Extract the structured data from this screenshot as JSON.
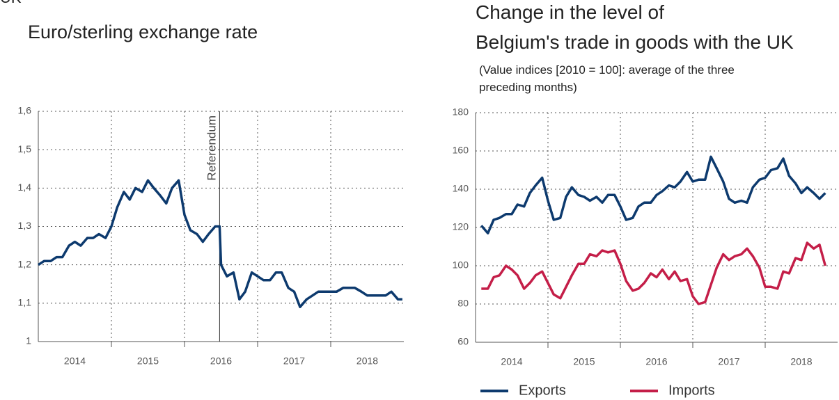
{
  "heading": "UK",
  "chart_data": [
    {
      "type": "line",
      "title": [
        "Euro/sterling exchange rate"
      ],
      "x": [
        2014,
        2014.08,
        2014.17,
        2014.25,
        2014.33,
        2014.42,
        2014.5,
        2014.58,
        2014.67,
        2014.75,
        2014.83,
        2014.92,
        2015,
        2015.08,
        2015.17,
        2015.25,
        2015.33,
        2015.42,
        2015.5,
        2015.58,
        2015.67,
        2015.75,
        2015.83,
        2015.92,
        2016,
        2016.08,
        2016.17,
        2016.25,
        2016.33,
        2016.42,
        2016.48,
        2016.5,
        2016.58,
        2016.67,
        2016.75,
        2016.83,
        2016.92,
        2017,
        2017.08,
        2017.17,
        2017.25,
        2017.33,
        2017.42,
        2017.5,
        2017.58,
        2017.67,
        2017.75,
        2017.83,
        2017.92,
        2018,
        2018.08,
        2018.17,
        2018.25,
        2018.33,
        2018.42,
        2018.5,
        2018.58,
        2018.67,
        2018.75,
        2018.83,
        2018.92,
        2018.98
      ],
      "series": [
        {
          "color": "#0d3a6e",
          "values": [
            1.2,
            1.21,
            1.21,
            1.22,
            1.22,
            1.25,
            1.26,
            1.25,
            1.27,
            1.27,
            1.28,
            1.27,
            1.3,
            1.35,
            1.39,
            1.37,
            1.4,
            1.39,
            1.42,
            1.4,
            1.38,
            1.36,
            1.4,
            1.42,
            1.33,
            1.29,
            1.28,
            1.26,
            1.28,
            1.3,
            1.3,
            1.2,
            1.17,
            1.18,
            1.11,
            1.13,
            1.18,
            1.17,
            1.16,
            1.16,
            1.18,
            1.18,
            1.14,
            1.13,
            1.09,
            1.11,
            1.12,
            1.13,
            1.13,
            1.13,
            1.13,
            1.14,
            1.14,
            1.14,
            1.13,
            1.12,
            1.12,
            1.12,
            1.12,
            1.13,
            1.11,
            1.11
          ]
        }
      ],
      "xlim": [
        2014,
        2019
      ],
      "xticks": [
        {
          "value": 2014.5,
          "label": "2014"
        },
        {
          "value": 2015.5,
          "label": "2015"
        },
        {
          "value": 2016.5,
          "label": "2016"
        },
        {
          "value": 2017.5,
          "label": "2017"
        },
        {
          "value": 2018.5,
          "label": "2018"
        }
      ],
      "xgrid": [
        2015,
        2016,
        2017,
        2018
      ],
      "ylim": [
        1,
        1.6
      ],
      "yticks": [
        1,
        {
          "value": 1.1,
          "label": "1,1"
        },
        {
          "value": 1.2,
          "label": "1,2"
        },
        {
          "value": 1.3,
          "label": "1,3"
        },
        {
          "value": 1.4,
          "label": "1,4"
        },
        {
          "value": 1.5,
          "label": "1,5"
        },
        {
          "value": 1.6,
          "label": "1,6"
        }
      ],
      "grid": true,
      "annotations": [
        {
          "x": 2016.48,
          "text": "Referendum"
        }
      ]
    },
    {
      "type": "line",
      "title": [
        "Change in the level of",
        "Belgium's trade in goods with the UK"
      ],
      "subtitle": [
        "(Value indices [2010 = 100]: average of the three",
        "preceding months)"
      ],
      "x": [
        2014.08,
        2014.17,
        2014.25,
        2014.33,
        2014.42,
        2014.5,
        2014.58,
        2014.67,
        2014.75,
        2014.83,
        2014.92,
        2015,
        2015.08,
        2015.17,
        2015.25,
        2015.33,
        2015.42,
        2015.5,
        2015.58,
        2015.67,
        2015.75,
        2015.83,
        2015.92,
        2016,
        2016.08,
        2016.17,
        2016.25,
        2016.33,
        2016.42,
        2016.5,
        2016.58,
        2016.67,
        2016.75,
        2016.83,
        2016.92,
        2017,
        2017.08,
        2017.17,
        2017.25,
        2017.33,
        2017.42,
        2017.5,
        2017.58,
        2017.67,
        2017.75,
        2017.83,
        2017.92,
        2018,
        2018.08,
        2018.17,
        2018.25,
        2018.33,
        2018.42,
        2018.5,
        2018.58,
        2018.67,
        2018.75,
        2018.83
      ],
      "series": [
        {
          "name": "Exports",
          "color": "#0d3a6e",
          "values": [
            121,
            117,
            124,
            125,
            127,
            127,
            132,
            131,
            138,
            142,
            146,
            134,
            124,
            125,
            136,
            141,
            137,
            136,
            134,
            136,
            133,
            137,
            137,
            131,
            124,
            125,
            131,
            133,
            133,
            137,
            139,
            142,
            141,
            144,
            149,
            144,
            145,
            145,
            157,
            151,
            144,
            135,
            133,
            134,
            133,
            141,
            145,
            146,
            150,
            151,
            156,
            147,
            143,
            138,
            141,
            138,
            135,
            138
          ]
        },
        {
          "name": "Imports",
          "color": "#c41e48",
          "values": [
            88,
            88,
            94,
            95,
            100,
            98,
            95,
            88,
            91,
            95,
            97,
            91,
            85,
            83,
            89,
            95,
            101,
            101,
            106,
            105,
            108,
            107,
            108,
            101,
            92,
            87,
            88,
            91,
            96,
            94,
            98,
            93,
            97,
            92,
            93,
            84,
            80,
            81,
            90,
            99,
            106,
            103,
            105,
            106,
            109,
            105,
            99,
            89,
            89,
            88,
            97,
            96,
            104,
            103,
            112,
            109,
            111,
            100
          ]
        }
      ],
      "xlim": [
        2014,
        2019
      ],
      "xticks": [
        {
          "value": 2014.5,
          "label": "2014"
        },
        {
          "value": 2015.5,
          "label": "2015"
        },
        {
          "value": 2016.5,
          "label": "2016"
        },
        {
          "value": 2017.5,
          "label": "2017"
        },
        {
          "value": 2018.5,
          "label": "2018"
        }
      ],
      "xgrid": [
        2015,
        2016,
        2017,
        2018
      ],
      "ylim": [
        60,
        180
      ],
      "yticks": [
        60,
        80,
        100,
        120,
        140,
        160,
        180
      ],
      "grid": true,
      "legend": "bottom"
    }
  ]
}
